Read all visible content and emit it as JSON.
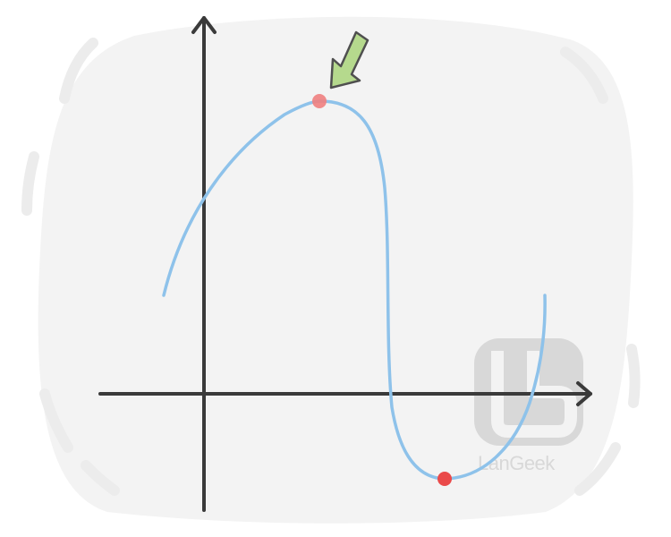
{
  "colors": {
    "backdrop": "#f3f3f3",
    "backdrop_dashes": "#ececec",
    "axis": "#3a3a3a",
    "curve": "#8ec2ea",
    "maximum_point": "#ef7f7f",
    "minimum_point": "#ea4a4a",
    "arrow_fill": "#b5d98d",
    "arrow_stroke": "#4f4f4f",
    "watermark": "#d8d8d8"
  },
  "icons": {
    "pointer": "arrow-down-left-icon",
    "logo": "langeek-logo-icon"
  },
  "watermark": {
    "brand": "LanGeek"
  }
}
